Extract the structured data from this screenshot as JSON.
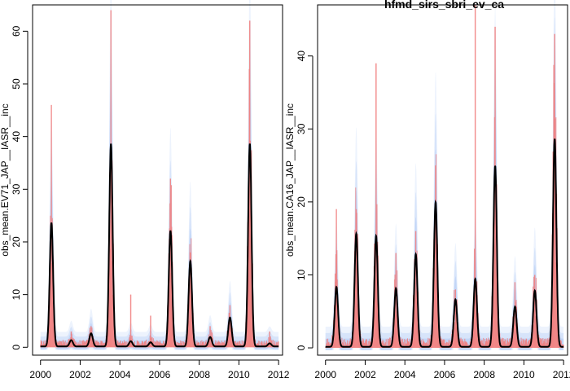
{
  "chart_data": [
    {
      "type": "line",
      "title": "",
      "xlabel": "",
      "ylabel": "obs_mean.EV71_JAP__IASR__inc",
      "xlim": [
        1999.6,
        2012.2
      ],
      "ylim": [
        -1.5,
        65
      ],
      "xticks": [
        2000,
        2002,
        2004,
        2006,
        2008,
        2010,
        2012
      ],
      "yticks": [
        0,
        10,
        20,
        30,
        40,
        50,
        60
      ],
      "colors": {
        "observed": "#f08080",
        "simulated_band": "#a9c4f5",
        "model_mean": "#000000"
      },
      "series": [],
      "seasonal_peaks": [
        {
          "x": 2000.55,
          "y": 23.5,
          "obs": 46
        },
        {
          "x": 2001.55,
          "y": 1.2,
          "obs": 3
        },
        {
          "x": 2002.55,
          "y": 2.5,
          "obs": 4
        },
        {
          "x": 2003.55,
          "y": 38.5,
          "obs": 64
        },
        {
          "x": 2004.55,
          "y": 1.0,
          "obs": 10
        },
        {
          "x": 2005.55,
          "y": 0.8,
          "obs": 6
        },
        {
          "x": 2006.55,
          "y": 22.0,
          "obs": 32
        },
        {
          "x": 2007.55,
          "y": 16.2,
          "obs": 18
        },
        {
          "x": 2008.55,
          "y": 1.8,
          "obs": 4
        },
        {
          "x": 2009.55,
          "y": 5.5,
          "obs": 8
        },
        {
          "x": 2010.55,
          "y": 38.5,
          "obs": 62
        },
        {
          "x": 2011.55,
          "y": 0.6,
          "obs": 3
        }
      ]
    },
    {
      "type": "line",
      "title": "hfmd_sirs_sbri_ev_ca",
      "xlabel": "",
      "ylabel": "obs_mean.CA16_JAP__IASR__inc",
      "xlim": [
        1999.6,
        2012.2
      ],
      "ylim": [
        -1,
        47
      ],
      "xticks": [
        2000,
        2002,
        2004,
        2006,
        2008,
        2010,
        2012
      ],
      "yticks": [
        0,
        10,
        20,
        30,
        40
      ],
      "colors": {
        "observed": "#f08080",
        "simulated_band": "#a9c4f5",
        "model_mean": "#000000"
      },
      "series": [],
      "seasonal_peaks": [
        {
          "x": 2000.55,
          "y": 8.2,
          "obs": 19
        },
        {
          "x": 2001.55,
          "y": 15.5,
          "obs": 19
        },
        {
          "x": 2002.55,
          "y": 15.2,
          "obs": 39
        },
        {
          "x": 2003.55,
          "y": 8.0,
          "obs": 13
        },
        {
          "x": 2004.55,
          "y": 12.7,
          "obs": 16
        },
        {
          "x": 2005.55,
          "y": 19.8,
          "obs": 25
        },
        {
          "x": 2006.55,
          "y": 6.5,
          "obs": 8
        },
        {
          "x": 2007.55,
          "y": 9.3,
          "obs": 47
        },
        {
          "x": 2008.55,
          "y": 24.8,
          "obs": 44
        },
        {
          "x": 2009.55,
          "y": 5.5,
          "obs": 9
        },
        {
          "x": 2010.55,
          "y": 7.7,
          "obs": 10
        },
        {
          "x": 2011.55,
          "y": 28.5,
          "obs": 43
        }
      ]
    }
  ]
}
